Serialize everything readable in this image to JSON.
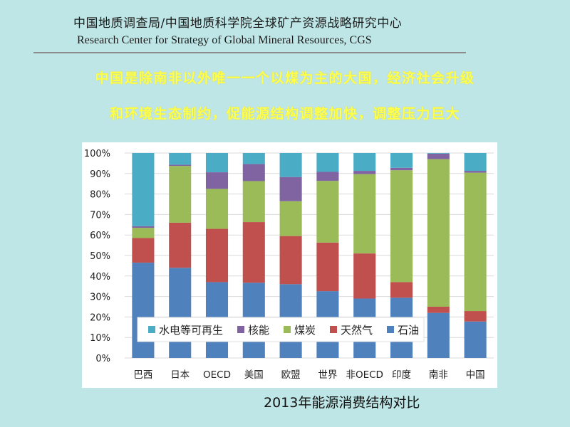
{
  "header": {
    "org_cn": "中国地质调查局/中国地质科学院全球矿产资源战略研究中心",
    "org_en": "Research Center for Strategy of Global Mineral Resources, CGS"
  },
  "headline": {
    "line1": "中国是除南非以外唯一一个以煤为主的大国，经济社会升级",
    "line2": "和环境生态制约，促能源结构调整加快，调整压力巨大"
  },
  "caption": "2013年能源消费结构对比",
  "colors": {
    "石油": "#4f81bd",
    "天然气": "#c0504d",
    "煤炭": "#9bbb59",
    "核能": "#8064a2",
    "水电等可再生": "#4bacc6"
  },
  "chart_data": {
    "type": "bar",
    "stacked": true,
    "categories": [
      "巴西",
      "日本",
      "OECD",
      "美国",
      "欧盟",
      "世界",
      "非OECD",
      "印度",
      "南非",
      "中国"
    ],
    "series": [
      {
        "name": "石油",
        "values": [
          46.5,
          44,
          37,
          36.7,
          36,
          32.6,
          29,
          29.4,
          22,
          17.8
        ]
      },
      {
        "name": "天然气",
        "values": [
          12,
          22,
          26,
          29.6,
          23.5,
          23.7,
          22,
          7.6,
          3,
          5.1
        ]
      },
      {
        "name": "煤炭",
        "values": [
          5,
          27.7,
          19.5,
          20,
          17,
          30.1,
          38.7,
          54.6,
          72,
          67.5
        ]
      },
      {
        "name": "核能",
        "values": [
          0.8,
          0.6,
          8.1,
          8.3,
          11.8,
          4.4,
          1.6,
          1.2,
          2.7,
          0.9
        ]
      },
      {
        "name": "水电等可再生",
        "values": [
          35.7,
          5.7,
          9.4,
          5.4,
          11.7,
          9.2,
          8.7,
          7.2,
          0.3,
          8.7
        ]
      }
    ],
    "legend_order": [
      "水电等可再生",
      "核能",
      "煤炭",
      "天然气",
      "石油"
    ],
    "legend_position": "bottom-inside",
    "ylim": [
      0,
      100
    ],
    "yticks": [
      "0%",
      "10%",
      "20%",
      "30%",
      "40%",
      "50%",
      "60%",
      "70%",
      "80%",
      "90%",
      "100%"
    ],
    "grid": true,
    "title": "",
    "xlabel": "",
    "ylabel": ""
  }
}
